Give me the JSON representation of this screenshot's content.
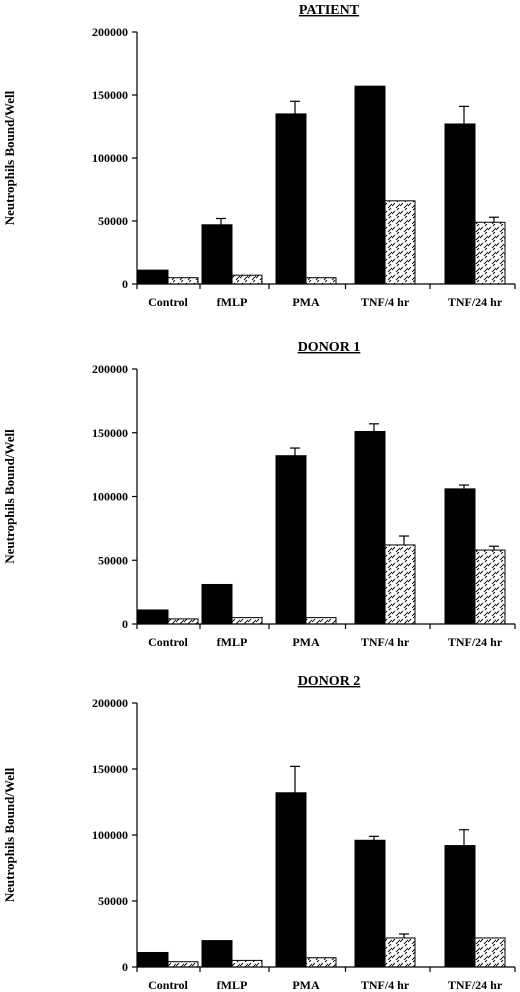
{
  "chart_data": [
    {
      "type": "bar",
      "title": "PATIENT",
      "ylabel": "Neutrophils Bound/Well",
      "xlabel": "",
      "ylim": [
        0,
        200000
      ],
      "yticks": [
        0,
        50000,
        100000,
        150000,
        200000
      ],
      "categories": [
        "Control",
        "fMLP",
        "PMA",
        "TNF/4 hr",
        "TNF/24 hr"
      ],
      "grid": false,
      "series": [
        {
          "fill": "solid-black",
          "values": [
            11000,
            47000,
            135000,
            157000,
            127000
          ],
          "errors": [
            0,
            5000,
            10000,
            0,
            14000
          ]
        },
        {
          "fill": "hatched",
          "values": [
            5000,
            7000,
            5000,
            66000,
            49000
          ],
          "errors": [
            0,
            0,
            0,
            0,
            4000
          ]
        }
      ]
    },
    {
      "type": "bar",
      "title": "DONOR 1",
      "ylabel": "Neutrophils Bound/Well",
      "xlabel": "",
      "ylim": [
        0,
        200000
      ],
      "yticks": [
        0,
        50000,
        100000,
        150000,
        200000
      ],
      "categories": [
        "Control",
        "fMLP",
        "PMA",
        "TNF/4 hr",
        "TNF/24 hr"
      ],
      "grid": false,
      "series": [
        {
          "fill": "solid-black",
          "values": [
            11000,
            31000,
            132000,
            151000,
            106000
          ],
          "errors": [
            0,
            0,
            6000,
            6000,
            3000
          ]
        },
        {
          "fill": "hatched",
          "values": [
            4000,
            5000,
            5000,
            62000,
            58000
          ],
          "errors": [
            0,
            0,
            0,
            7000,
            3000
          ]
        }
      ]
    },
    {
      "type": "bar",
      "title": "DONOR 2",
      "ylabel": "Neutrophils Bound/Well",
      "xlabel": "",
      "ylim": [
        0,
        200000
      ],
      "yticks": [
        0,
        50000,
        100000,
        150000,
        200000
      ],
      "categories": [
        "Control",
        "fMLP",
        "PMA",
        "TNF/4 hr",
        "TNF/24 hr"
      ],
      "grid": false,
      "series": [
        {
          "fill": "solid-black",
          "values": [
            11000,
            20000,
            132000,
            96000,
            92000
          ],
          "errors": [
            0,
            0,
            20000,
            3000,
            12000
          ]
        },
        {
          "fill": "hatched",
          "values": [
            4000,
            5000,
            7000,
            22000,
            22000
          ],
          "errors": [
            0,
            0,
            0,
            3000,
            0
          ]
        }
      ]
    }
  ]
}
